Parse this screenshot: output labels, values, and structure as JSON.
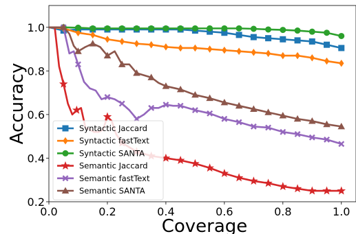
{
  "chart_data": {
    "type": "line",
    "title": "",
    "xlabel": "Coverage",
    "ylabel": "Accuracy",
    "xlim": [
      0.0,
      1.05
    ],
    "ylim": [
      0.2,
      1.1
    ],
    "xticks": [
      0.0,
      0.2,
      0.4,
      0.6,
      0.8,
      1.0
    ],
    "yticks": [
      0.2,
      0.4,
      0.6,
      0.8,
      1.0
    ],
    "xtick_labels": [
      "0.0",
      "0.2",
      "0.4",
      "0.6",
      "0.8",
      "1.0"
    ],
    "ytick_labels": [
      "0.2",
      "0.4",
      "0.6",
      "0.8",
      "1.0"
    ],
    "grid": false,
    "legend_position": "lower-left",
    "series": [
      {
        "name": "Syntactic Jaccard",
        "color": "#1f77b4",
        "marker": "square",
        "x": [
          0.0,
          0.05,
          0.1,
          0.15,
          0.2,
          0.25,
          0.3,
          0.35,
          0.4,
          0.45,
          0.5,
          0.55,
          0.6,
          0.65,
          0.7,
          0.75,
          0.8,
          0.85,
          0.9,
          0.95,
          1.0
        ],
        "y": [
          1.0,
          0.985,
          0.99,
          0.99,
          0.99,
          0.99,
          0.99,
          0.99,
          0.99,
          0.99,
          0.985,
          0.98,
          0.975,
          0.965,
          0.955,
          0.95,
          0.945,
          0.94,
          0.935,
          0.92,
          0.905
        ]
      },
      {
        "name": "Syntactic fastText",
        "color": "#ff7f0e",
        "marker": "diamond",
        "x": [
          0.0,
          0.05,
          0.1,
          0.15,
          0.2,
          0.25,
          0.3,
          0.35,
          0.4,
          0.45,
          0.5,
          0.55,
          0.6,
          0.65,
          0.7,
          0.75,
          0.8,
          0.85,
          0.9,
          0.95,
          1.0
        ],
        "y": [
          1.0,
          0.995,
          0.975,
          0.965,
          0.945,
          0.935,
          0.925,
          0.92,
          0.91,
          0.905,
          0.905,
          0.9,
          0.895,
          0.89,
          0.885,
          0.88,
          0.87,
          0.87,
          0.86,
          0.845,
          0.835
        ]
      },
      {
        "name": "Syntactic SANTA",
        "color": "#2ca02c",
        "marker": "circle",
        "x": [
          0.0,
          0.05,
          0.1,
          0.15,
          0.2,
          0.25,
          0.3,
          0.35,
          0.4,
          0.45,
          0.5,
          0.55,
          0.6,
          0.65,
          0.7,
          0.75,
          0.8,
          0.85,
          0.9,
          0.95,
          1.0
        ],
        "y": [
          1.0,
          1.0,
          0.998,
          0.995,
          0.995,
          0.995,
          0.995,
          0.995,
          0.995,
          0.995,
          0.995,
          0.995,
          0.995,
          0.995,
          0.993,
          0.99,
          0.988,
          0.985,
          0.98,
          0.975,
          0.96
        ]
      },
      {
        "name": "Semantic Jaccard",
        "color": "#d62728",
        "marker": "star",
        "x": [
          0.0,
          0.02,
          0.035,
          0.05,
          0.065,
          0.08,
          0.095,
          0.11,
          0.125,
          0.14,
          0.155,
          0.17,
          0.185,
          0.2,
          0.215,
          0.23,
          0.25,
          0.3,
          0.35,
          0.4,
          0.45,
          0.5,
          0.55,
          0.6,
          0.65,
          0.7,
          0.75,
          0.8,
          0.85,
          0.9,
          0.95,
          1.0
        ],
        "y": [
          1.0,
          1.0,
          0.82,
          0.74,
          0.65,
          0.6,
          0.62,
          0.63,
          0.54,
          0.53,
          0.52,
          0.52,
          0.53,
          0.59,
          0.57,
          0.51,
          0.47,
          0.43,
          0.41,
          0.4,
          0.39,
          0.375,
          0.355,
          0.33,
          0.31,
          0.295,
          0.285,
          0.27,
          0.26,
          0.25,
          0.25,
          0.25
        ]
      },
      {
        "name": "Semantic fastText",
        "color": "#9467bd",
        "marker": "x",
        "x": [
          0.0,
          0.05,
          0.07,
          0.085,
          0.1,
          0.12,
          0.14,
          0.16,
          0.18,
          0.2,
          0.225,
          0.25,
          0.275,
          0.3,
          0.325,
          0.35,
          0.375,
          0.4,
          0.425,
          0.45,
          0.5,
          0.55,
          0.6,
          0.65,
          0.7,
          0.75,
          0.8,
          0.85,
          0.9,
          0.95,
          1.0
        ],
        "y": [
          1.0,
          1.0,
          0.88,
          0.89,
          0.83,
          0.75,
          0.72,
          0.71,
          0.67,
          0.68,
          0.67,
          0.65,
          0.62,
          0.58,
          0.6,
          0.63,
          0.63,
          0.645,
          0.64,
          0.64,
          0.62,
          0.605,
          0.58,
          0.565,
          0.545,
          0.54,
          0.52,
          0.51,
          0.495,
          0.485,
          0.465
        ]
      },
      {
        "name": "Semantic SANTA",
        "color": "#8c564b",
        "marker": "triangle",
        "x": [
          0.0,
          0.05,
          0.07,
          0.085,
          0.1,
          0.125,
          0.15,
          0.175,
          0.2,
          0.225,
          0.25,
          0.275,
          0.3,
          0.35,
          0.375,
          0.4,
          0.45,
          0.5,
          0.55,
          0.6,
          0.65,
          0.7,
          0.75,
          0.8,
          0.85,
          0.9,
          0.95,
          1.0
        ],
        "y": [
          1.0,
          1.0,
          0.97,
          0.915,
          0.89,
          0.91,
          0.925,
          0.91,
          0.87,
          0.89,
          0.83,
          0.83,
          0.79,
          0.77,
          0.745,
          0.73,
          0.715,
          0.69,
          0.675,
          0.655,
          0.64,
          0.625,
          0.61,
          0.595,
          0.58,
          0.57,
          0.555,
          0.545
        ]
      }
    ]
  }
}
